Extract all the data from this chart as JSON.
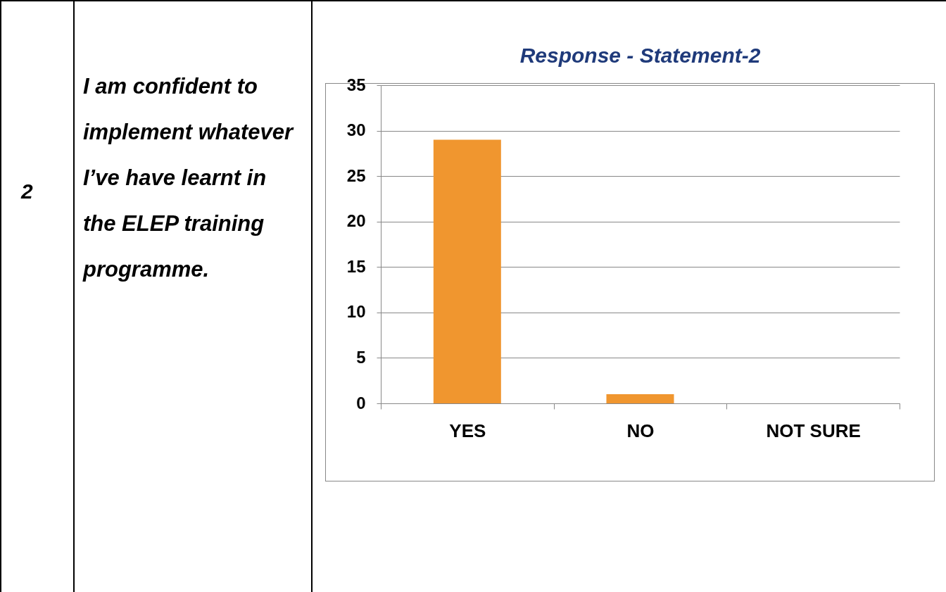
{
  "chart_data": {
    "type": "bar",
    "title": "Response - Statement-2",
    "categories": [
      "YES",
      "NO",
      "NOT SURE"
    ],
    "values": [
      29,
      1,
      0
    ],
    "color": "#f0962f",
    "ylim": [
      0,
      35
    ],
    "yticks": [
      0,
      5,
      10,
      15,
      20,
      25,
      30,
      35
    ],
    "grid": "y",
    "annotations": [
      "2",
      "I am confident to implement whatever I’ve have learnt in the ELEP training programme."
    ]
  }
}
